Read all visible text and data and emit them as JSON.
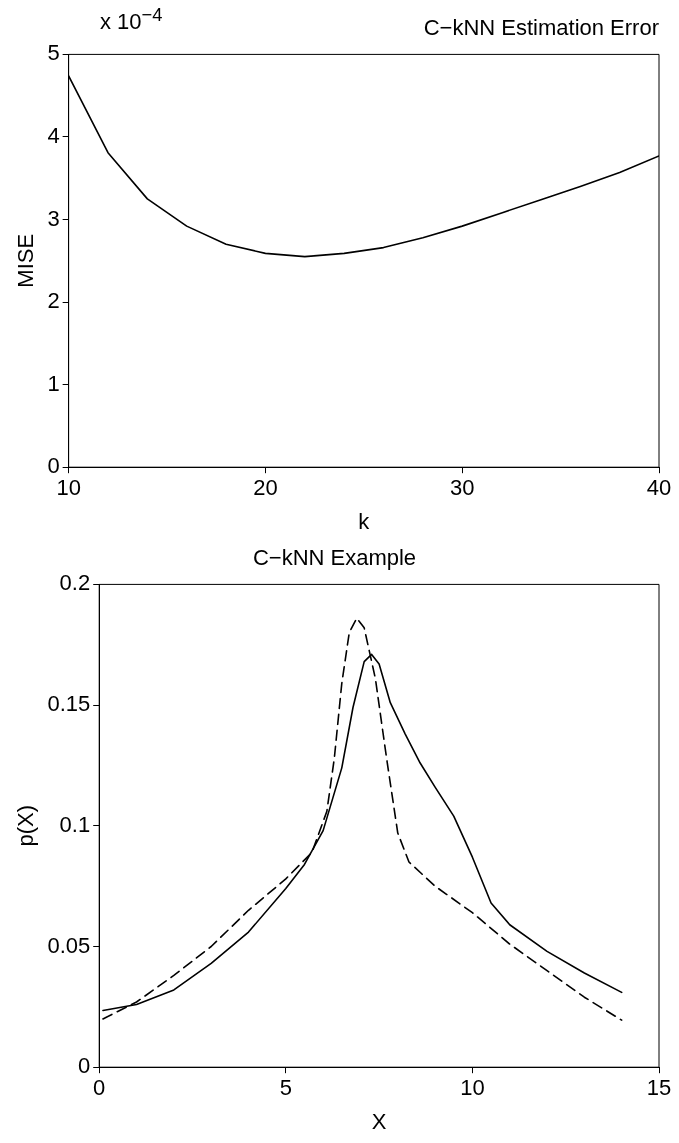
{
  "chart_data": [
    {
      "type": "line",
      "title": "C−kNN Estimation Error",
      "xlabel": "k",
      "ylabel": "MISE",
      "x": [
        10,
        12,
        14,
        16,
        18,
        20,
        22,
        24,
        26,
        28,
        30,
        32,
        34,
        36,
        38,
        40
      ],
      "series": [
        {
          "color": "#000000",
          "line_style": "solid",
          "values": [
            4.74,
            3.81,
            3.25,
            2.92,
            2.7,
            2.59,
            2.55,
            2.59,
            2.66,
            2.78,
            2.92,
            3.08,
            3.24,
            3.4,
            3.57,
            3.77
          ]
        }
      ],
      "xlim": [
        10,
        40
      ],
      "xticks": [
        10,
        20,
        30,
        40
      ],
      "ylim": [
        0,
        5
      ],
      "yticks": [
        0,
        1,
        2,
        3,
        4,
        5
      ],
      "annotations": [
        "x 10$^{−4}$"
      ],
      "grid": false,
      "legend": false,
      "marker": "none"
    },
    {
      "type": "line",
      "title": "C−kNN Example",
      "xlabel": "X",
      "ylabel": "p(X)",
      "series": [
        {
          "color": "#000000",
          "line_style": "solid",
          "x": [
            0.1,
            1,
            2,
            3,
            4,
            5,
            5.5,
            6,
            6.5,
            6.8,
            7.1,
            7.3,
            7.5,
            7.8,
            8.2,
            8.6,
            9,
            9.5,
            10,
            10.5,
            11,
            12,
            13,
            14
          ],
          "values": [
            0.0235,
            0.026,
            0.032,
            0.043,
            0.056,
            0.074,
            0.084,
            0.098,
            0.124,
            0.149,
            0.168,
            0.171,
            0.167,
            0.151,
            0.138,
            0.126,
            0.116,
            0.104,
            0.087,
            0.068,
            0.059,
            0.048,
            0.039,
            0.031
          ]
        },
        {
          "color": "#000000",
          "line_style": "dashed",
          "x": [
            0.1,
            1,
            2,
            3,
            4,
            5,
            5.7,
            6.1,
            6.3,
            6.5,
            6.7,
            6.9,
            7.1,
            7.4,
            7.7,
            8,
            8.3,
            9,
            10,
            11,
            12,
            13,
            14
          ],
          "values": [
            0.02,
            0.027,
            0.038,
            0.05,
            0.065,
            0.078,
            0.089,
            0.106,
            0.128,
            0.159,
            0.18,
            0.186,
            0.182,
            0.161,
            0.128,
            0.097,
            0.085,
            0.075,
            0.064,
            0.051,
            0.04,
            0.029,
            0.0195
          ]
        }
      ],
      "xlim": [
        0,
        15
      ],
      "xticks": [
        0,
        5,
        10,
        15
      ],
      "ylim": [
        0,
        0.2
      ],
      "yticks": [
        0,
        0.05,
        0.1,
        0.15,
        0.2
      ],
      "grid": false,
      "legend": false,
      "marker": "none"
    }
  ]
}
